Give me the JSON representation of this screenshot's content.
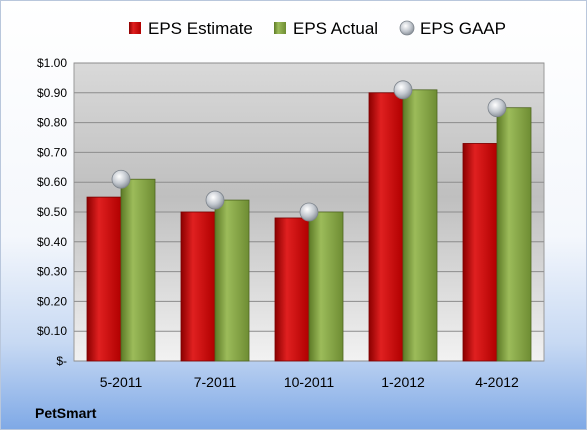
{
  "chart_data": {
    "type": "bar",
    "categories": [
      "5-2011",
      "7-2011",
      "10-2011",
      "1-2012",
      "4-2012"
    ],
    "series": [
      {
        "name": "EPS Estimate",
        "kind": "bar",
        "color": "#c00000",
        "values": [
          0.55,
          0.5,
          0.48,
          0.9,
          0.73
        ]
      },
      {
        "name": "EPS Actual",
        "kind": "bar",
        "color": "#77933c",
        "values": [
          0.61,
          0.54,
          0.5,
          0.91,
          0.85
        ]
      },
      {
        "name": "EPS GAAP",
        "kind": "marker",
        "color": "#b0b6be",
        "values": [
          0.61,
          0.54,
          0.5,
          0.91,
          0.85
        ]
      }
    ],
    "ylim": [
      0,
      1.0
    ],
    "yticks": [
      0,
      0.1,
      0.2,
      0.3,
      0.4,
      0.5,
      0.6,
      0.7,
      0.8,
      0.9,
      1.0
    ],
    "ytick_labels": [
      "$-",
      "$0.10",
      "$0.20",
      "$0.30",
      "$0.40",
      "$0.50",
      "$0.60",
      "$0.70",
      "$0.80",
      "$0.90",
      "$1.00"
    ],
    "grid": true,
    "legend_position": "top",
    "footer_label": "PetSmart"
  }
}
